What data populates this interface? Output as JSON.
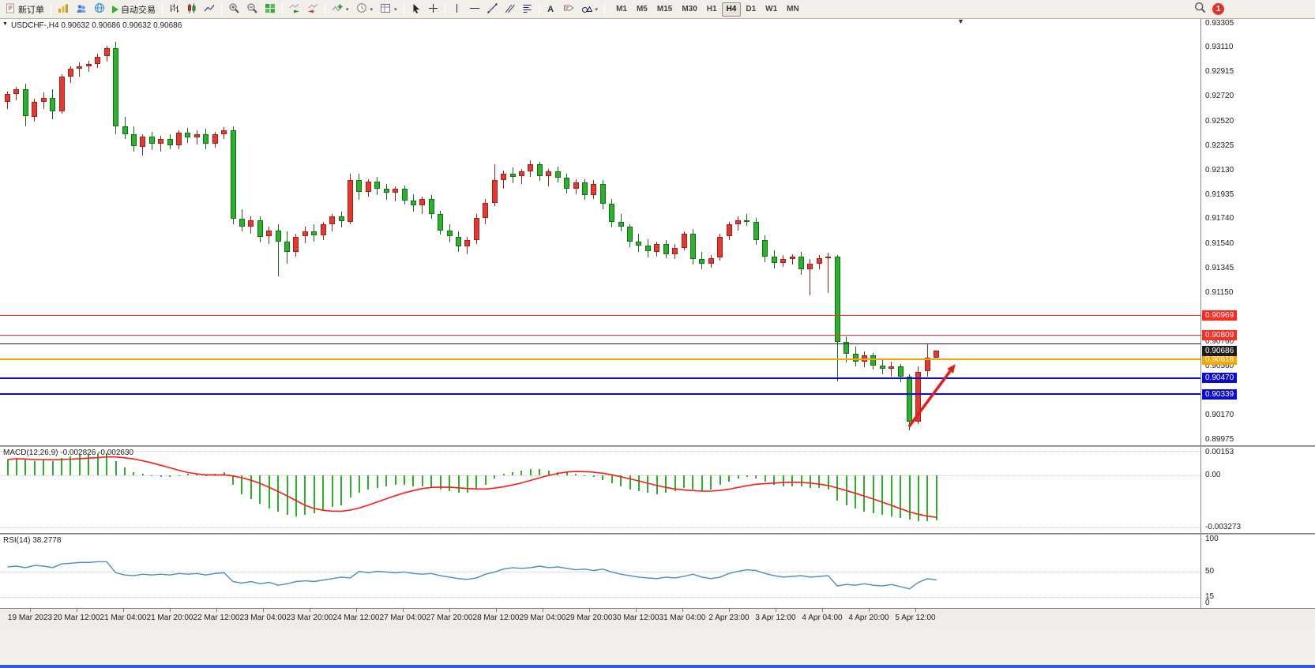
{
  "toolbar": {
    "new_order_label": "新订单",
    "auto_trading_label": "自动交易",
    "timeframes": [
      "M1",
      "M5",
      "M15",
      "M30",
      "H1",
      "H4",
      "D1",
      "W1",
      "MN"
    ],
    "active_timeframe": "H4",
    "notification_count": "1"
  },
  "chart": {
    "title": "USDCHF-,H4 0.90632 0.90686 0.90632 0.90686",
    "symbol": "USDCHF-",
    "period": "H4",
    "open": "0.90632",
    "high": "0.90686",
    "low": "0.90632",
    "close": "0.90686"
  },
  "chart_data": [
    {
      "type": "candlestick",
      "symbol": "USDCHF-",
      "timeframe": "H4",
      "price_range": [
        0.8993,
        0.9334
      ],
      "up_color": "#e8382e",
      "down_color": "#29b329",
      "y_axis_labels": [
        "0.93305",
        "0.93110",
        "0.92915",
        "0.92720",
        "0.92520",
        "0.92325",
        "0.92130",
        "0.91935",
        "0.91740",
        "0.91540",
        "0.91345",
        "0.91150",
        "0.90760",
        "0.90560",
        "0.90170",
        "0.89975"
      ],
      "horizontal_lines": [
        {
          "price": 0.90969,
          "label": "0.90969",
          "color": "#ff2a20",
          "thickness": 1
        },
        {
          "price": 0.90809,
          "label": "0.90809",
          "color": "#ff2a20",
          "thickness": 1
        },
        {
          "price": 0.9074,
          "label": "",
          "color": "#1d1d1d",
          "thickness": 1
        },
        {
          "price": 0.90618,
          "label": "0.90618",
          "color": "#f5a800",
          "thickness": 2
        },
        {
          "price": 0.9047,
          "label": "0.90470",
          "color": "#0a0ad0",
          "thickness": 2
        },
        {
          "price": 0.90339,
          "label": "0.90339",
          "color": "#0a0ad0",
          "thickness": 2
        }
      ],
      "current_price": {
        "label": "0.90686",
        "price": 0.90686,
        "box_color": "#1d1d1d"
      },
      "annotation_arrow": {
        "x1_index": 100,
        "price1": 0.9008,
        "x2_index": 105.4,
        "price2": 0.9058,
        "color": "#e41b17"
      },
      "candles": [
        [
          0.9268,
          0.9276,
          0.9262,
          0.9274
        ],
        [
          0.9274,
          0.928,
          0.9269,
          0.9278
        ],
        [
          0.9278,
          0.9282,
          0.9248,
          0.9256
        ],
        [
          0.9256,
          0.927,
          0.9252,
          0.9268
        ],
        [
          0.9268,
          0.9275,
          0.9262,
          0.9271
        ],
        [
          0.9271,
          0.9278,
          0.9254,
          0.926
        ],
        [
          0.926,
          0.929,
          0.9258,
          0.9288
        ],
        [
          0.9288,
          0.9296,
          0.9283,
          0.9294
        ],
        [
          0.9294,
          0.92995,
          0.9288,
          0.9296
        ],
        [
          0.9296,
          0.93005,
          0.92915,
          0.9298
        ],
        [
          0.9298,
          0.9306,
          0.92945,
          0.9304
        ],
        [
          0.9304,
          0.93125,
          0.93,
          0.93105
        ],
        [
          0.93105,
          0.93155,
          0.9242,
          0.9248
        ],
        [
          0.9248,
          0.9256,
          0.9238,
          0.9242
        ],
        [
          0.9242,
          0.9248,
          0.9228,
          0.9232
        ],
        [
          0.9232,
          0.9242,
          0.9225,
          0.924
        ],
        [
          0.924,
          0.9244,
          0.92295,
          0.9234
        ],
        [
          0.9234,
          0.92405,
          0.9228,
          0.9238
        ],
        [
          0.9238,
          0.9242,
          0.92295,
          0.9233
        ],
        [
          0.9233,
          0.9245,
          0.923,
          0.9243
        ],
        [
          0.9243,
          0.9247,
          0.9235,
          0.9239
        ],
        [
          0.9239,
          0.9245,
          0.92335,
          0.9242
        ],
        [
          0.9242,
          0.9246,
          0.923,
          0.9234
        ],
        [
          0.9234,
          0.9244,
          0.9231,
          0.9242
        ],
        [
          0.9242,
          0.92475,
          0.9238,
          0.9245
        ],
        [
          0.9245,
          0.9248,
          0.917,
          0.9174
        ],
        [
          0.9174,
          0.9182,
          0.9164,
          0.9168
        ],
        [
          0.9168,
          0.9176,
          0.9162,
          0.9173
        ],
        [
          0.9173,
          0.9176,
          0.91555,
          0.916
        ],
        [
          0.916,
          0.9168,
          0.9154,
          0.9165
        ],
        [
          0.9165,
          0.917,
          0.9128,
          0.9156
        ],
        [
          0.9156,
          0.9164,
          0.9138,
          0.9148
        ],
        [
          0.9148,
          0.9162,
          0.9144,
          0.916
        ],
        [
          0.916,
          0.9168,
          0.91545,
          0.9164
        ],
        [
          0.9164,
          0.917,
          0.9156,
          0.9161
        ],
        [
          0.9161,
          0.9172,
          0.91575,
          0.917
        ],
        [
          0.917,
          0.9178,
          0.9164,
          0.9176
        ],
        [
          0.9176,
          0.918,
          0.91675,
          0.9172
        ],
        [
          0.9172,
          0.921,
          0.917,
          0.9205
        ],
        [
          0.9205,
          0.921,
          0.91895,
          0.9196
        ],
        [
          0.9196,
          0.9206,
          0.9192,
          0.9204
        ],
        [
          0.9204,
          0.9208,
          0.91935,
          0.9198
        ],
        [
          0.9198,
          0.9202,
          0.91895,
          0.9195
        ],
        [
          0.9195,
          0.92,
          0.9188,
          0.9198
        ],
        [
          0.9198,
          0.9201,
          0.91855,
          0.9189
        ],
        [
          0.9189,
          0.9194,
          0.918,
          0.9185
        ],
        [
          0.9185,
          0.9192,
          0.9178,
          0.919
        ],
        [
          0.919,
          0.9193,
          0.91745,
          0.9178
        ],
        [
          0.9178,
          0.91805,
          0.91615,
          0.9165
        ],
        [
          0.9165,
          0.917,
          0.91555,
          0.916
        ],
        [
          0.916,
          0.9164,
          0.91475,
          0.9152
        ],
        [
          0.9152,
          0.916,
          0.9146,
          0.9157
        ],
        [
          0.9157,
          0.9178,
          0.9154,
          0.9175
        ],
        [
          0.9175,
          0.919,
          0.917,
          0.9187
        ],
        [
          0.9187,
          0.9218,
          0.9184,
          0.9205
        ],
        [
          0.9205,
          0.92125,
          0.9198,
          0.921
        ],
        [
          0.921,
          0.9215,
          0.92025,
          0.9208
        ],
        [
          0.9208,
          0.9214,
          0.9202,
          0.9212
        ],
        [
          0.9212,
          0.9221,
          0.92075,
          0.9218
        ],
        [
          0.9218,
          0.922,
          0.92045,
          0.9208
        ],
        [
          0.9208,
          0.9214,
          0.92,
          0.9212
        ],
        [
          0.9212,
          0.9216,
          0.92035,
          0.9207
        ],
        [
          0.9207,
          0.921,
          0.91945,
          0.9198
        ],
        [
          0.9198,
          0.9206,
          0.9194,
          0.9203
        ],
        [
          0.9203,
          0.9206,
          0.91895,
          0.9193
        ],
        [
          0.9193,
          0.9205,
          0.919,
          0.9202
        ],
        [
          0.9202,
          0.9205,
          0.91815,
          0.9186
        ],
        [
          0.9186,
          0.919,
          0.91675,
          0.9172
        ],
        [
          0.9172,
          0.9178,
          0.9164,
          0.9168
        ],
        [
          0.9168,
          0.917,
          0.91515,
          0.9156
        ],
        [
          0.9156,
          0.9162,
          0.9148,
          0.9153
        ],
        [
          0.9153,
          0.9158,
          0.91435,
          0.9148
        ],
        [
          0.9148,
          0.9156,
          0.9144,
          0.9154
        ],
        [
          0.9154,
          0.9157,
          0.91425,
          0.9146
        ],
        [
          0.9146,
          0.9154,
          0.9142,
          0.9151
        ],
        [
          0.9151,
          0.9164,
          0.9149,
          0.9162
        ],
        [
          0.9162,
          0.9166,
          0.91375,
          0.9142
        ],
        [
          0.9142,
          0.9148,
          0.9134,
          0.9138
        ],
        [
          0.9138,
          0.9145,
          0.9135,
          0.9143
        ],
        [
          0.9143,
          0.9162,
          0.9141,
          0.916
        ],
        [
          0.916,
          0.9172,
          0.9157,
          0.917
        ],
        [
          0.917,
          0.9176,
          0.9165,
          0.9173
        ],
        [
          0.9173,
          0.9178,
          0.91685,
          0.91715
        ],
        [
          0.91715,
          0.9175,
          0.91535,
          0.9157
        ],
        [
          0.9157,
          0.9161,
          0.91395,
          0.9144
        ],
        [
          0.9144,
          0.9149,
          0.91345,
          0.9139
        ],
        [
          0.9139,
          0.9145,
          0.91355,
          0.9142
        ],
        [
          0.9142,
          0.9146,
          0.91375,
          0.9144
        ],
        [
          0.9144,
          0.9148,
          0.91295,
          0.9134
        ],
        [
          0.9134,
          0.9142,
          0.9113,
          0.9138
        ],
        [
          0.9138,
          0.9145,
          0.91335,
          0.9143
        ],
        [
          0.9143,
          0.9147,
          0.9115,
          0.9144
        ],
        [
          0.9144,
          0.9145,
          0.9044,
          0.9076
        ],
        [
          0.9076,
          0.908,
          0.90595,
          0.9066
        ],
        [
          0.9066,
          0.9072,
          0.9056,
          0.906
        ],
        [
          0.906,
          0.9068,
          0.90555,
          0.9065
        ],
        [
          0.9065,
          0.9067,
          0.90535,
          0.9057
        ],
        [
          0.9057,
          0.9062,
          0.90495,
          0.9054
        ],
        [
          0.9054,
          0.906,
          0.9048,
          0.9056
        ],
        [
          0.9056,
          0.9058,
          0.90435,
          0.9048
        ],
        [
          0.9048,
          0.905,
          0.9005,
          0.9012
        ],
        [
          0.9012,
          0.9056,
          0.901,
          0.9052
        ],
        [
          0.9052,
          0.9074,
          0.9048,
          0.90632
        ],
        [
          0.90632,
          0.90686,
          0.90632,
          0.90686
        ]
      ]
    },
    {
      "type": "bar",
      "name": "MACD(12,26,9)",
      "full_label": "MACD(12,26,9) -0.002826 -0.002630",
      "y_axis_labels": [
        {
          "text": "0.00153",
          "value": 0.00153
        },
        {
          "text": "0.00",
          "value": 0
        },
        {
          "text": "-0.003273",
          "value": -0.003273
        }
      ],
      "range": [
        -0.00365,
        0.0018
      ],
      "bar_color": "#29b329",
      "signal_color": "#ff1a1a",
      "signal_period": 9,
      "values": [
        0.001,
        0.0011,
        0.001,
        0.0009,
        0.001,
        0.0009,
        0.0011,
        0.0012,
        0.0013,
        0.0013,
        0.0014,
        0.0014,
        0.0009,
        0.0005,
        0.0002,
        0.0001,
        0.0,
        -0.0001,
        -0.0001,
        0.0,
        0.0001,
        0.0001,
        0.0,
        0.0001,
        0.0002,
        -0.0006,
        -0.0012,
        -0.0015,
        -0.0018,
        -0.0021,
        -0.0023,
        -0.0025,
        -0.0026,
        -0.0025,
        -0.0024,
        -0.0022,
        -0.002,
        -0.0019,
        -0.0014,
        -0.0011,
        -0.0009,
        -0.0008,
        -0.0007,
        -0.0006,
        -0.0006,
        -0.0007,
        -0.0007,
        -0.0008,
        -0.0009,
        -0.001,
        -0.0011,
        -0.0011,
        -0.0009,
        -0.0006,
        -0.0002,
        0.0001,
        0.0002,
        0.0003,
        0.0004,
        0.0004,
        0.0003,
        0.0002,
        0.0002,
        0.0001,
        0.0,
        -0.0001,
        -0.0003,
        -0.0005,
        -0.0007,
        -0.0009,
        -0.001,
        -0.0011,
        -0.0012,
        -0.0011,
        -0.001,
        -0.0008,
        -0.0009,
        -0.001,
        -0.0009,
        -0.0006,
        -0.0004,
        -0.0002,
        -0.0001,
        -0.0002,
        -0.0004,
        -0.0006,
        -0.0007,
        -0.0007,
        -0.0007,
        -0.0008,
        -0.0008,
        -0.0009,
        -0.0016,
        -0.0019,
        -0.0021,
        -0.0023,
        -0.0024,
        -0.0025,
        -0.0026,
        -0.0027,
        -0.0028,
        -0.0029,
        -0.0029,
        -0.002826
      ]
    },
    {
      "type": "line",
      "name": "RSI(14)",
      "full_label": "RSI(14) 38.2778",
      "y_axis_labels": [
        {
          "text": "100",
          "value": 100
        },
        {
          "text": "50",
          "value": 50
        },
        {
          "text": "15",
          "value": 15
        },
        {
          "text": "0",
          "value": 0
        }
      ],
      "range": [
        0,
        100
      ],
      "line_color": "#4a8bc4",
      "values": [
        56,
        57,
        55,
        58,
        57,
        55,
        60,
        61,
        62,
        62,
        63,
        63,
        48,
        45,
        44,
        46,
        45,
        46,
        45,
        47,
        46,
        47,
        45,
        47,
        48,
        36,
        34,
        36,
        33,
        35,
        31,
        33,
        36,
        37,
        36,
        38,
        40,
        42,
        41,
        50,
        48,
        50,
        49,
        48,
        49,
        47,
        46,
        47,
        44,
        42,
        40,
        39,
        41,
        46,
        49,
        53,
        55,
        54,
        55,
        57,
        55,
        56,
        54,
        52,
        53,
        51,
        53,
        49,
        46,
        44,
        42,
        41,
        40,
        42,
        41,
        43,
        46,
        42,
        40,
        42,
        47,
        50,
        52,
        51,
        47,
        44,
        42,
        43,
        44,
        42,
        43,
        44,
        30,
        32,
        31,
        33,
        31,
        30,
        32,
        29,
        26,
        35,
        40,
        38.2778
      ]
    }
  ],
  "time_axis": {
    "labels": [
      "19 Mar 2023",
      "20 Mar 12:00",
      "21 Mar 04:00",
      "21 Mar 20:00",
      "22 Mar 12:00",
      "23 Mar 04:00",
      "23 Mar 20:00",
      "24 Mar 12:00",
      "27 Mar 04:00",
      "27 Mar 20:00",
      "28 Mar 12:00",
      "29 Mar 04:00",
      "29 Mar 20:00",
      "30 Mar 12:00",
      "31 Mar 04:00",
      "2 Apr 23:00",
      "3 Apr 12:00",
      "4 Apr 04:00",
      "4 Apr 20:00",
      "5 Apr 12:00"
    ]
  }
}
